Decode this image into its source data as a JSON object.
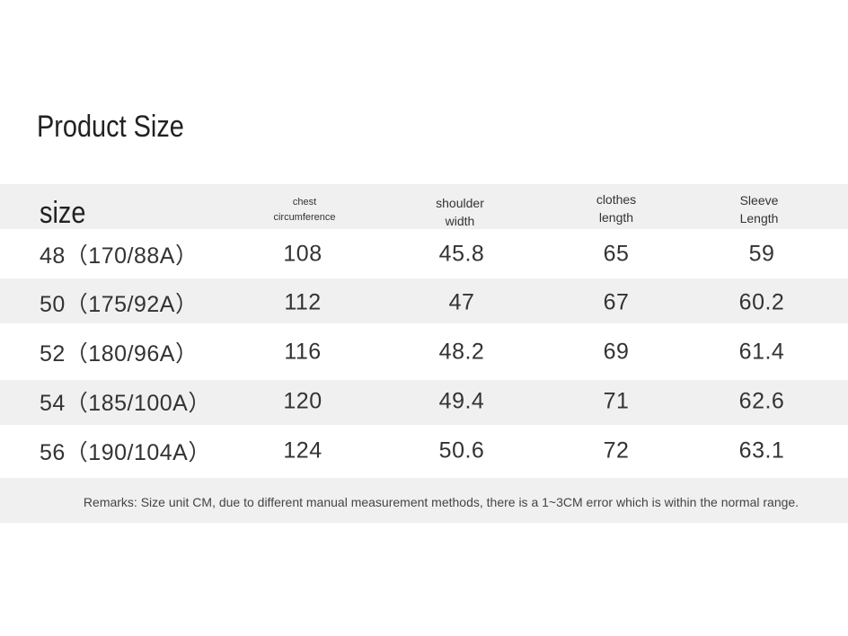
{
  "title": "Product Size",
  "table": {
    "header": [
      [
        "size"
      ],
      [
        "chest",
        "circumference"
      ],
      [
        "shoulder",
        "width"
      ],
      [
        "clothes",
        "length"
      ],
      [
        "Sleeve",
        "Length"
      ]
    ],
    "rows": [
      [
        "48（170/88A）",
        108,
        45.8,
        65,
        59
      ],
      [
        "50（175/92A）",
        112,
        47,
        67,
        60.2
      ],
      [
        "52（180/96A）",
        116,
        48.2,
        69,
        61.4
      ],
      [
        "54（185/100A）",
        120,
        49.4,
        71,
        62.6
      ],
      [
        "56（190/104A）",
        124,
        50.6,
        72,
        63.1
      ]
    ]
  },
  "remarks": "Remarks: Size unit CM, due to different manual measurement methods, there is a 1~3CM error which is within the normal range."
}
